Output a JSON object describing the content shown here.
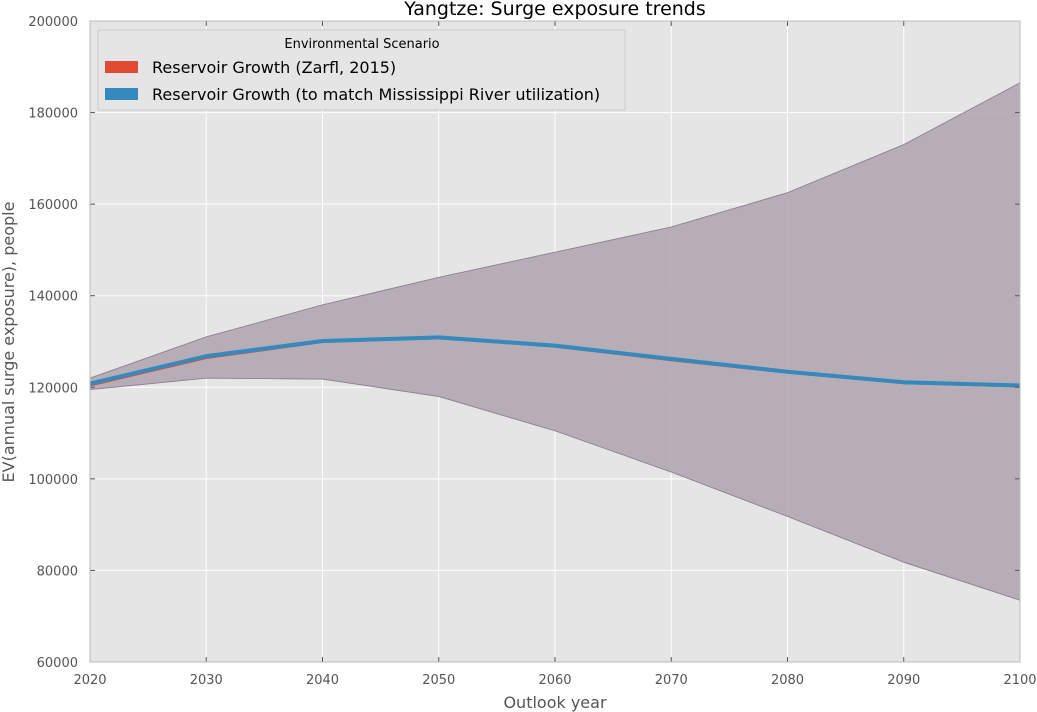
{
  "chart_data": {
    "type": "area",
    "title": "Yangtze: Surge exposure trends",
    "xlabel": "Outlook year",
    "ylabel": "EV(annual surge exposure), people",
    "xlim": [
      2020,
      2100
    ],
    "ylim": [
      60000,
      200000
    ],
    "x_ticks": [
      "2020",
      "2030",
      "2040",
      "2050",
      "2060",
      "2070",
      "2080",
      "2090",
      "2100"
    ],
    "y_ticks": [
      "60000",
      "80000",
      "100000",
      "120000",
      "140000",
      "160000",
      "180000",
      "200000"
    ],
    "grid": true,
    "legend": {
      "title": "Environmental Scenario",
      "placement": "top-left",
      "entries": [
        {
          "label": "Reservoir Growth (Zarfl, 2015)",
          "color": "#E24A33"
        },
        {
          "label": "Reservoir Growth (to match Mississippi River utilization)",
          "color": "#348ABD"
        }
      ]
    },
    "x": [
      2020,
      2030,
      2040,
      2050,
      2060,
      2070,
      2080,
      2090,
      2100
    ],
    "series": [
      {
        "name": "Reservoir Growth (Zarfl, 2015)",
        "color": "#E24A33",
        "mean": [
          120500,
          126500,
          130000,
          130800,
          129000,
          126000,
          123300,
          121000,
          120300
        ],
        "upper": [
          122000,
          131000,
          138000,
          144000,
          149500,
          155000,
          162500,
          173000,
          186500
        ],
        "lower": [
          119500,
          122000,
          121800,
          118000,
          110500,
          101500,
          91800,
          81800,
          73500
        ]
      },
      {
        "name": "Reservoir Growth (to match Mississippi River utilization)",
        "color": "#348ABD",
        "mean": [
          120800,
          126800,
          130100,
          130900,
          129100,
          126200,
          123400,
          121100,
          120400
        ],
        "upper": [
          122000,
          131000,
          138000,
          144000,
          149500,
          155000,
          162500,
          173000,
          186500
        ],
        "lower": [
          119500,
          122000,
          121800,
          118000,
          110500,
          101500,
          91800,
          81800,
          73500
        ]
      }
    ],
    "band_color": "#a89fac"
  }
}
